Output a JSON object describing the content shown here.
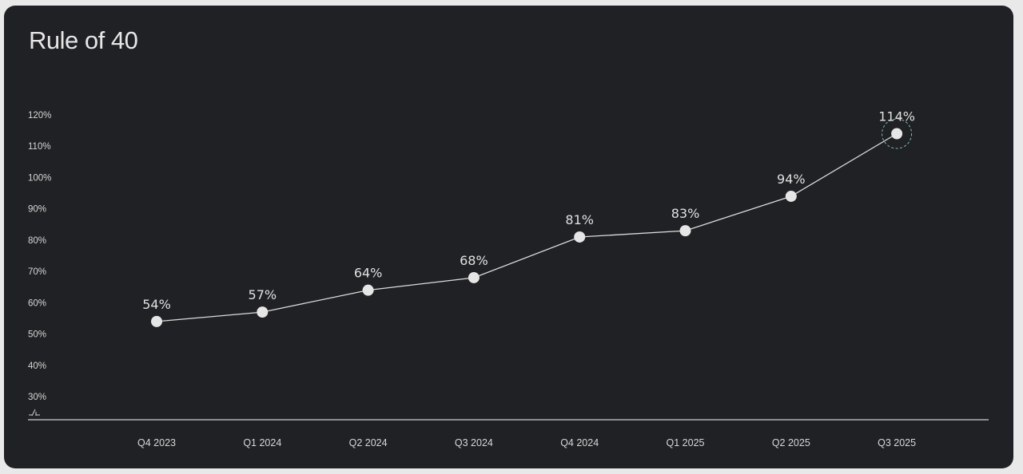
{
  "title": "Rule of 40",
  "chart_data": {
    "type": "line",
    "title": "Rule of 40",
    "categories": [
      "Q4 2023",
      "Q1 2024",
      "Q2 2024",
      "Q3 2024",
      "Q4 2024",
      "Q1 2025",
      "Q2 2025",
      "Q3 2025"
    ],
    "values": [
      54,
      57,
      64,
      68,
      81,
      83,
      94,
      114
    ],
    "labels": [
      "54%",
      "57%",
      "64%",
      "68%",
      "81%",
      "83%",
      "94%",
      "114%"
    ],
    "yticks": [
      30,
      40,
      50,
      60,
      70,
      80,
      90,
      100,
      110,
      120
    ],
    "ytick_labels": [
      "30%",
      "40%",
      "50%",
      "60%",
      "70%",
      "80%",
      "90%",
      "100%",
      "110%",
      "120%"
    ],
    "ylim": [
      30,
      120
    ],
    "axis_break": true,
    "highlight_last": true,
    "grid": false,
    "xlabel": "",
    "ylabel": "",
    "colors": {
      "background": "#1f2124",
      "line": "#dcdcdc",
      "marker": "#e6e6e6",
      "highlight_ring": "#8fd3c7",
      "text": "#d6d6d6"
    }
  }
}
